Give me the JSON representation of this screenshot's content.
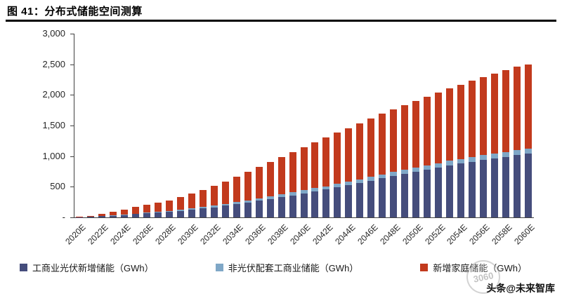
{
  "header": {
    "title": "图 41：分布式储能空间测算"
  },
  "chart_data": {
    "type": "bar",
    "stacked": true,
    "title": "分布式储能空间测算",
    "xlabel": "",
    "ylabel": "",
    "ylim": [
      0,
      3000
    ],
    "grid": false,
    "legend_position": "bottom",
    "y_ticks": [
      "-",
      "500",
      "1,000",
      "1,500",
      "2,000",
      "2,500",
      "3,000"
    ],
    "categories": [
      "2020E",
      "2021E",
      "2022E",
      "2023E",
      "2024E",
      "2025E",
      "2026E",
      "2027E",
      "2028E",
      "2029E",
      "2030E",
      "2031E",
      "2032E",
      "2033E",
      "2034E",
      "2035E",
      "2036E",
      "2037E",
      "2038E",
      "2039E",
      "2040E",
      "2041E",
      "2042E",
      "2043E",
      "2044E",
      "2045E",
      "2046E",
      "2047E",
      "2048E",
      "2049E",
      "2050E",
      "2051E",
      "2052E",
      "2053E",
      "2054E",
      "2055E",
      "2056E",
      "2057E",
      "2058E",
      "2059E",
      "2060E"
    ],
    "x_tick_shown": [
      "2020E",
      "2022E",
      "2024E",
      "2026E",
      "2028E",
      "2030E",
      "2032E",
      "2034E",
      "2036E",
      "2038E",
      "2040E",
      "2042E",
      "2044E",
      "2046E",
      "2048E",
      "2050E",
      "2052E",
      "2054E",
      "2056E",
      "2058E",
      "2060E"
    ],
    "series": [
      {
        "name": "工商业光伏新增储能（GWh）",
        "color": "#454d7c",
        "values": [
          5,
          10,
          18,
          28,
          40,
          52,
          65,
          78,
          92,
          108,
          125,
          145,
          165,
          190,
          215,
          240,
          270,
          300,
          330,
          360,
          395,
          425,
          455,
          490,
          525,
          560,
          600,
          640,
          675,
          710,
          745,
          780,
          815,
          850,
          880,
          910,
          940,
          965,
          990,
          1015,
          1040
        ]
      },
      {
        "name": "非光伏配套工商业储能（GWh）",
        "color": "#7fa7c7",
        "values": [
          1,
          2,
          4,
          6,
          8,
          10,
          12,
          14,
          16,
          18,
          20,
          23,
          26,
          29,
          32,
          35,
          38,
          41,
          44,
          47,
          50,
          52,
          54,
          56,
          58,
          60,
          62,
          64,
          66,
          68,
          70,
          71,
          72,
          73,
          74,
          75,
          76,
          77,
          78,
          79,
          80
        ]
      },
      {
        "name": "新增家庭储能（GWh）",
        "color": "#c23a1d",
        "values": [
          4,
          13,
          33,
          56,
          82,
          108,
          128,
          148,
          172,
          204,
          245,
          282,
          329,
          371,
          413,
          465,
          512,
          559,
          606,
          653,
          705,
          753,
          801,
          844,
          877,
          920,
          958,
          986,
          1019,
          1052,
          1085,
          1119,
          1153,
          1187,
          1216,
          1245,
          1274,
          1308,
          1342,
          1366,
          1380
        ]
      }
    ]
  },
  "legend": {
    "items": [
      {
        "label": "工商业光伏新增储能（GWh）",
        "color": "#454d7c"
      },
      {
        "label": "非光伏配套工商业储能（GWh）",
        "color": "#7fa7c7"
      },
      {
        "label": "新增家庭储能（GWh）",
        "color": "#c23a1d"
      }
    ]
  },
  "watermark": {
    "text": "头条@未来智库",
    "stamp": "3060"
  }
}
